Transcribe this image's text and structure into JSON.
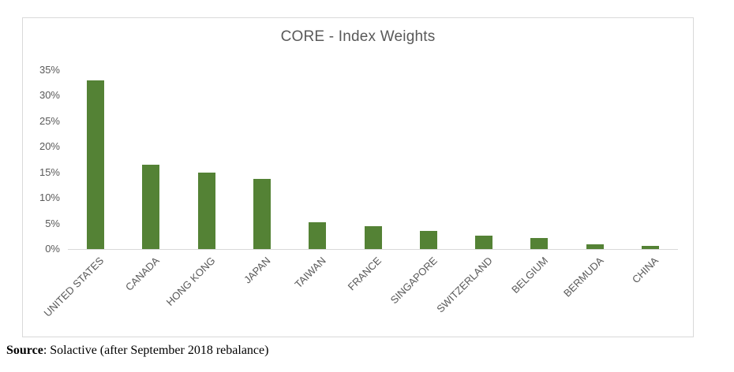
{
  "chart": {
    "bar_color": "#548235",
    "axis_color": "#d9d9d9",
    "frame_color": "#d9d9d9",
    "label_color": "#595959"
  },
  "chart_data": {
    "type": "bar",
    "title": "CORE - Index Weights",
    "categories": [
      "UNITED STATES",
      "CANADA",
      "HONG KONG",
      "JAPAN",
      "TAIWAN",
      "FRANCE",
      "SINGAPORE",
      "SWITZERLAND",
      "BELGIUM",
      "BERMUDA",
      "CHINA"
    ],
    "values": [
      33,
      16.5,
      15,
      13.8,
      5.3,
      4.5,
      3.5,
      2.7,
      2.2,
      0.9,
      0.7
    ],
    "unit": "%",
    "xlabel": "",
    "ylabel": "",
    "ylim": [
      0,
      35
    ],
    "ytick_step": 5,
    "ytick_labels": [
      "0%",
      "5%",
      "10%",
      "15%",
      "20%",
      "25%",
      "30%",
      "35%"
    ],
    "grid": false,
    "legend": "none",
    "bar_color": "#548235",
    "label_rotation_deg": -45
  },
  "source": {
    "label": "Source",
    "rest": ": Solactive (after September 2018 rebalance)"
  }
}
